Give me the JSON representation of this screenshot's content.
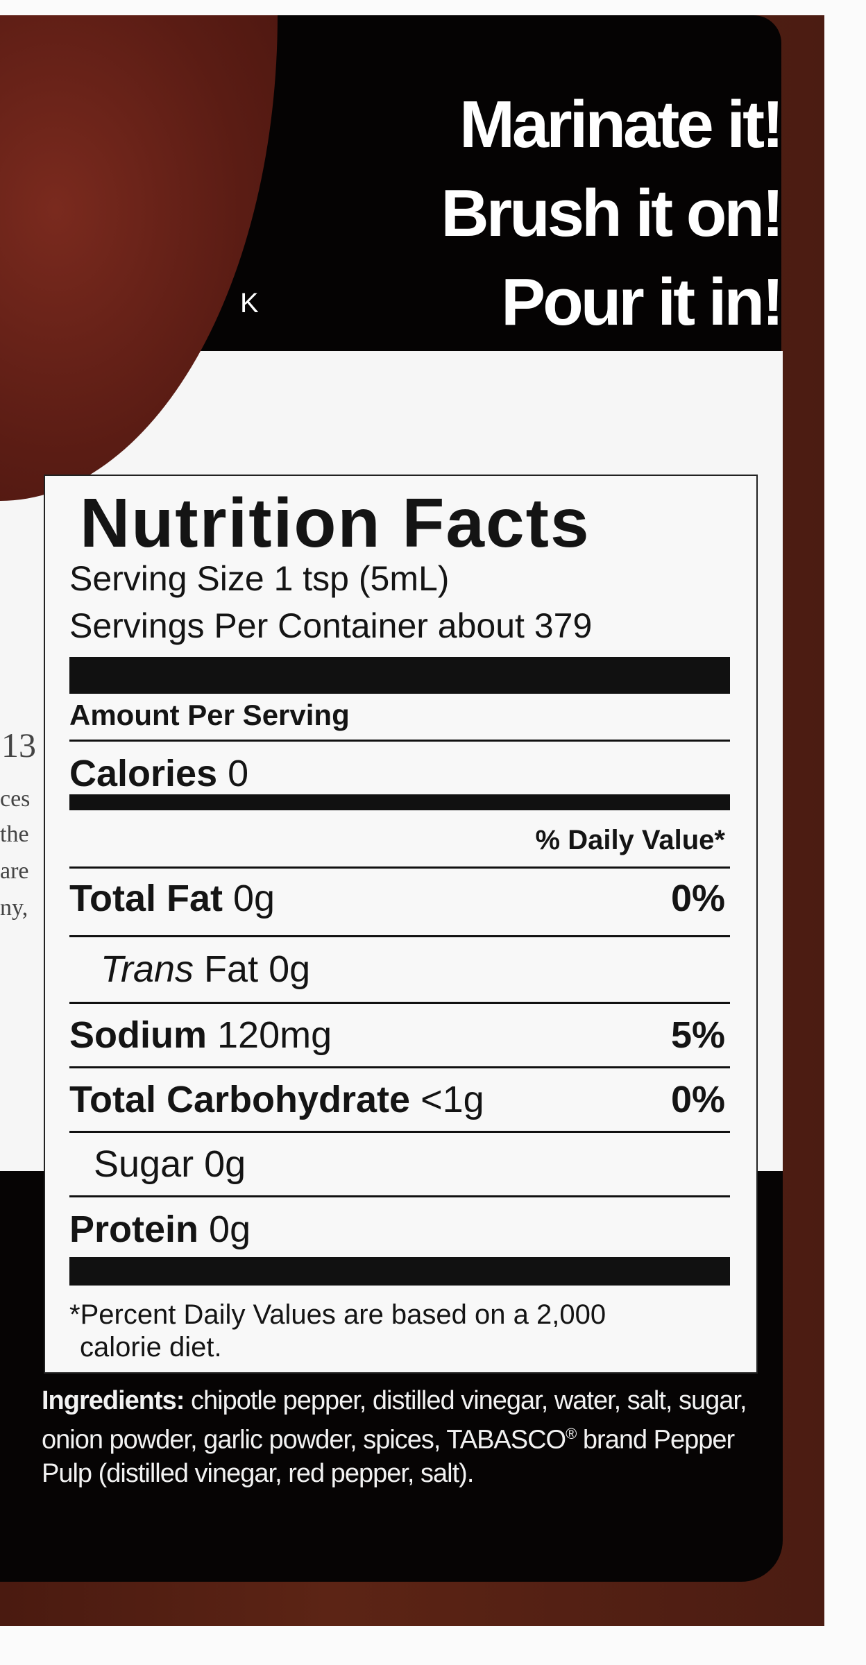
{
  "slogans": [
    "Marinate it!",
    "Brush it on!",
    "Pour it in!"
  ],
  "stray_letter": "K",
  "side_text": [
    "13",
    "ces",
    "the",
    "are",
    "ny,"
  ],
  "nutrition": {
    "title": "Nutrition Facts",
    "serving_size": "Serving Size 1 tsp (5mL)",
    "servings_per_container": "Servings Per Container about 379",
    "amount_per_serving": "Amount Per Serving",
    "calories_label": "Calories",
    "calories_value": "0",
    "daily_value_header": "% Daily Value*",
    "total_fat_label": "Total Fat",
    "total_fat_value": "0g",
    "total_fat_dv": "0%",
    "trans_fat_italic": "Trans",
    "trans_fat_label": "Fat 0g",
    "sodium_label": "Sodium",
    "sodium_value": "120mg",
    "sodium_dv": "5%",
    "carb_label": "Total Carbohydrate",
    "carb_value": "<1g",
    "carb_dv": "0%",
    "sugar_label": "Sugar 0g",
    "protein_label": "Protein",
    "protein_value": "0g",
    "footnote_1": "*Percent Daily Values are based on a 2,000",
    "footnote_2": "calorie diet."
  },
  "ingredients": {
    "label": "Ingredients:",
    "text": "chipotle pepper, distilled vinegar, water, salt, sugar, onion powder, garlic powder,  spices, TABASCO",
    "registered": "®",
    "text_2": "brand Pepper Pulp (distilled vinegar, red pepper, salt)."
  },
  "colors": {
    "bottle": "#5c2415",
    "label_black": "#050303",
    "label_white": "#f6f6f6"
  }
}
